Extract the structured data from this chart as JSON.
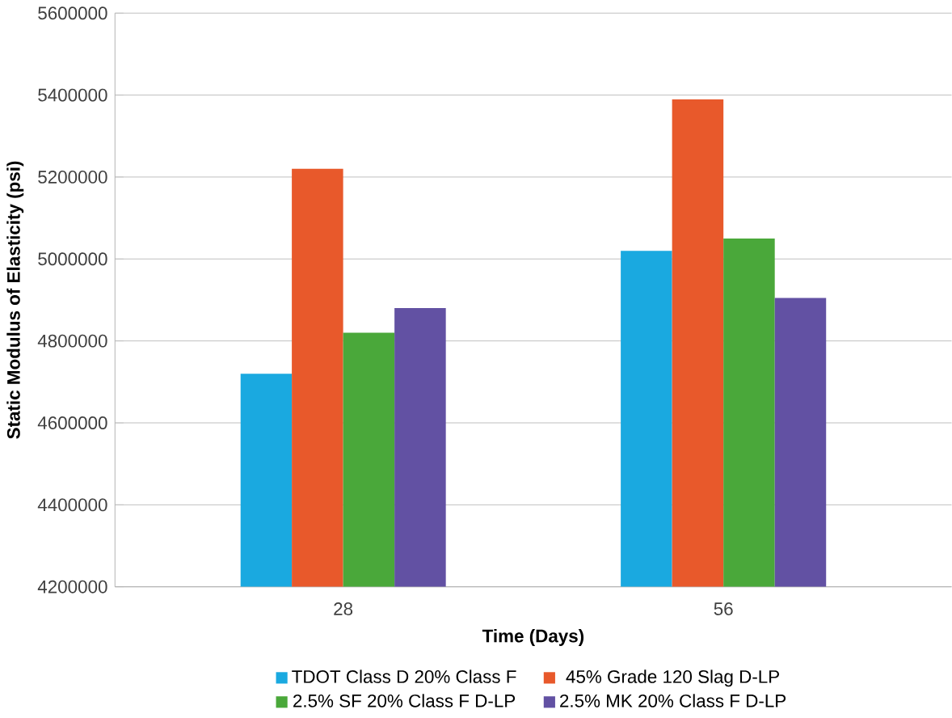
{
  "chart_data": {
    "type": "bar",
    "xlabel": "Time (Days)",
    "ylabel": "Static Modulus of Elasticity (psi)",
    "categories": [
      "28",
      "56"
    ],
    "series": [
      {
        "name": "TDOT Class D 20% Class F",
        "color": "#1aa9e0",
        "values": [
          4720000,
          5020000
        ]
      },
      {
        "name": "45% Grade 120 Slag D-LP",
        "color": "#e8592b",
        "values": [
          5220000,
          5390000
        ]
      },
      {
        "name": "2.5% SF 20% Class F D-LP",
        "color": "#4aa83a",
        "values": [
          4820000,
          5050000
        ]
      },
      {
        "name": "2.5% MK 20% Class F D-LP",
        "color": "#6251a3",
        "values": [
          4880000,
          4905000
        ]
      }
    ],
    "ylim": [
      4200000,
      5600000
    ],
    "yticks": [
      4200000,
      4400000,
      4600000,
      4800000,
      5000000,
      5200000,
      5400000,
      5600000
    ],
    "grid": "y",
    "legend": "bottom"
  }
}
